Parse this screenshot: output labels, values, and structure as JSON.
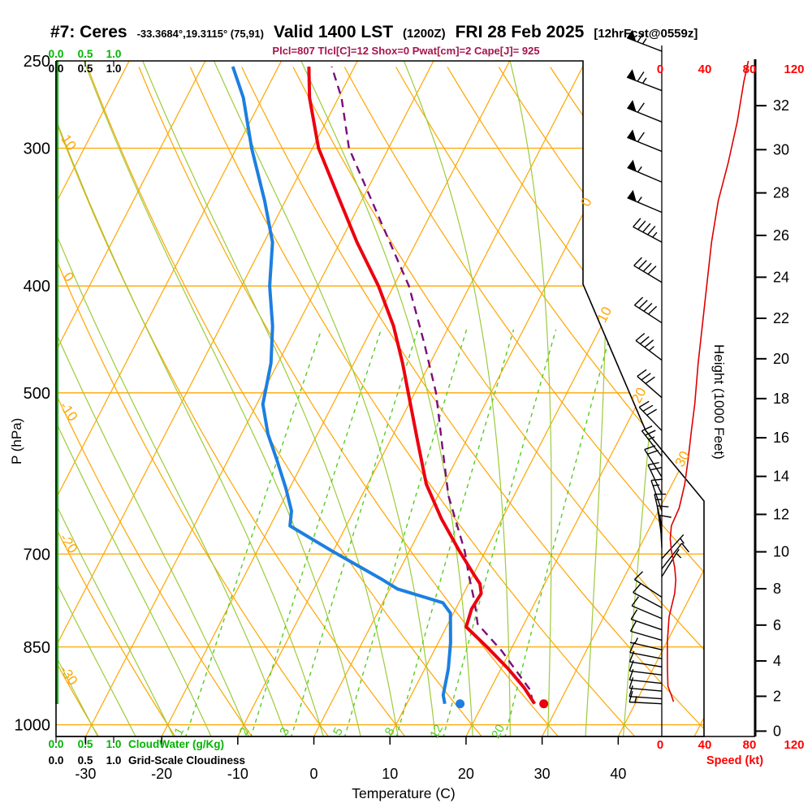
{
  "header": {
    "station": "#7: Ceres",
    "coords": "-33.3684°,19.3115° (75,91)",
    "valid": "Valid 1400 LST",
    "valid_z": "(1200Z)",
    "valid_date": "FRI 28 Feb 2025",
    "fcst_tag": "[12hrFcst@0559z]",
    "params_line": "Plcl=807 Tlcl[C]=12 Shox=0 Pwat[cm]=2 Cape[J]= 925",
    "subtitle_color": "#A4154B"
  },
  "axes": {
    "pressure_label": "P (hPa)",
    "temperature_label": "Temperature (C)",
    "height_label": "Height (1000 Feet)",
    "speed_label": "Speed (kt)",
    "cloudwater_label": "CloudWater (g/Kg)",
    "cloudiness_label": "Grid-Scale Cloudiness",
    "cloud_scale": [
      "0.0",
      "0.5",
      "1.0"
    ],
    "pressure_ticks": [
      250,
      300,
      400,
      500,
      700,
      850,
      1000
    ],
    "temp_ticks": [
      -30,
      -20,
      -10,
      0,
      10,
      20,
      30,
      40
    ],
    "height_ticks": [
      0,
      2,
      4,
      6,
      8,
      10,
      12,
      14,
      16,
      18,
      20,
      22,
      24,
      26,
      28,
      30,
      32
    ],
    "speed_ticks": [
      0,
      40,
      80,
      120
    ]
  },
  "chart_data": {
    "type": "skewt-log-p",
    "pressure_range_hpa": [
      250,
      1030
    ],
    "temp_axis_range_c": [
      -35,
      45
    ],
    "isotherm_labels_c": [
      0,
      10,
      20,
      30
    ],
    "dry_adiabat_labels_c": [
      10,
      0,
      -10,
      -20,
      -30
    ],
    "mixing_ratio_labels_gkg": [
      1,
      2,
      3,
      5,
      8,
      12,
      20
    ],
    "temperature_sounding_p_c": [
      [
        253,
        -46
      ],
      [
        270,
        -43.8
      ],
      [
        300,
        -39.2
      ],
      [
        335,
        -32.8
      ],
      [
        365,
        -27.8
      ],
      [
        400,
        -22
      ],
      [
        435,
        -17.3
      ],
      [
        470,
        -13.6
      ],
      [
        512,
        -9.8
      ],
      [
        555,
        -6.2
      ],
      [
        605,
        -2.3
      ],
      [
        650,
        2
      ],
      [
        695,
        6.5
      ],
      [
        730,
        10
      ],
      [
        745,
        11.5
      ],
      [
        760,
        12.3
      ],
      [
        785,
        12.1
      ],
      [
        815,
        12.6
      ],
      [
        850,
        16.7
      ],
      [
        890,
        21
      ],
      [
        925,
        24.3
      ],
      [
        957,
        26.8
      ]
    ],
    "dewpoint_sounding_p_c": [
      [
        253,
        -56
      ],
      [
        270,
        -52.5
      ],
      [
        300,
        -48
      ],
      [
        335,
        -42.7
      ],
      [
        365,
        -38.9
      ],
      [
        400,
        -36.3
      ],
      [
        435,
        -33.2
      ],
      [
        470,
        -30.9
      ],
      [
        512,
        -29.2
      ],
      [
        545,
        -26.5
      ],
      [
        575,
        -23.6
      ],
      [
        610,
        -20.5
      ],
      [
        640,
        -18.2
      ],
      [
        660,
        -17.4
      ],
      [
        696,
        -10.1
      ],
      [
        737,
        -1.9
      ],
      [
        753,
        1
      ],
      [
        775,
        7.9
      ],
      [
        792,
        9.6
      ],
      [
        842,
        11.6
      ],
      [
        890,
        13.1
      ],
      [
        940,
        14.2
      ],
      [
        957,
        15
      ]
    ],
    "parcel_path_p_c": [
      [
        955,
        26.5
      ],
      [
        930,
        25.3
      ],
      [
        857,
        18.9
      ],
      [
        810,
        13.9
      ],
      [
        775,
        12.1
      ],
      [
        731,
        9.4
      ],
      [
        696,
        7.3
      ],
      [
        620,
        1.4
      ],
      [
        560,
        -2.7
      ],
      [
        500,
        -7.2
      ],
      [
        450,
        -12.2
      ],
      [
        400,
        -18
      ],
      [
        350,
        -26
      ],
      [
        300,
        -35.2
      ],
      [
        270,
        -39.6
      ],
      [
        253,
        -43
      ]
    ],
    "surface_temp_dot": {
      "p": 957,
      "t": 28
    },
    "surface_dewpoint_dot": {
      "p": 957,
      "t": 17
    },
    "wind_speed_profile_p_kt": [
      [
        250,
        79
      ],
      [
        261,
        75
      ],
      [
        284,
        69
      ],
      [
        309,
        61
      ],
      [
        335,
        52
      ],
      [
        365,
        46
      ],
      [
        397,
        42
      ],
      [
        432,
        38
      ],
      [
        470,
        34
      ],
      [
        512,
        31
      ],
      [
        541,
        28
      ],
      [
        575,
        25
      ],
      [
        605,
        22
      ],
      [
        636,
        17
      ],
      [
        660,
        10
      ],
      [
        678,
        9
      ],
      [
        695,
        10
      ],
      [
        720,
        13
      ],
      [
        739,
        14
      ],
      [
        760,
        13
      ],
      [
        798,
        8
      ],
      [
        840,
        6.5
      ],
      [
        885,
        6.5
      ],
      [
        923,
        7
      ],
      [
        940,
        10
      ],
      [
        953,
        12
      ]
    ],
    "wind_barbs_p_kt_ang": [
      [
        245,
        65,
        159
      ],
      [
        266,
        65,
        159
      ],
      [
        284,
        60,
        158
      ],
      [
        302,
        60,
        158
      ],
      [
        322,
        55,
        157
      ],
      [
        343,
        55,
        157
      ],
      [
        365,
        45,
        152
      ],
      [
        397,
        40,
        149
      ],
      [
        432,
        40,
        147
      ],
      [
        467,
        35,
        143
      ],
      [
        505,
        30,
        139
      ],
      [
        541,
        28,
        134
      ],
      [
        571,
        25,
        128
      ],
      [
        596,
        20,
        122
      ],
      [
        618,
        20,
        115
      ],
      [
        640,
        15,
        109
      ],
      [
        660,
        15,
        103
      ],
      [
        677,
        10,
        98
      ],
      [
        691,
        8,
        93
      ],
      [
        707,
        5,
        48
      ],
      [
        722,
        10,
        52
      ],
      [
        734,
        5,
        58
      ],
      [
        766,
        10,
        147
      ],
      [
        783,
        10,
        152
      ],
      [
        801,
        10,
        157
      ],
      [
        820,
        10,
        161
      ],
      [
        838,
        10,
        164
      ],
      [
        855,
        7,
        167
      ],
      [
        871,
        10,
        169
      ],
      [
        886,
        10,
        171
      ],
      [
        901,
        10,
        173
      ],
      [
        917,
        10,
        174
      ],
      [
        932,
        10,
        175
      ],
      [
        947,
        10,
        176
      ],
      [
        957,
        15,
        177
      ]
    ],
    "cloudwater_profile": "zero",
    "cloudiness_profile": "zero",
    "colors": {
      "grid_orange": "#FFA500",
      "moist_adiabat_green": "#9CCB3B",
      "mixing_green": "#55CC22",
      "axis_green": "#00B400",
      "temp_red": "#EB0010",
      "dew_blue": "#1D7FE0",
      "parcel_purple": "#7A0D7A",
      "speed_curve_red": "#DD0000",
      "speed_label_red": "#FF0000",
      "frame_black": "#000000"
    }
  }
}
